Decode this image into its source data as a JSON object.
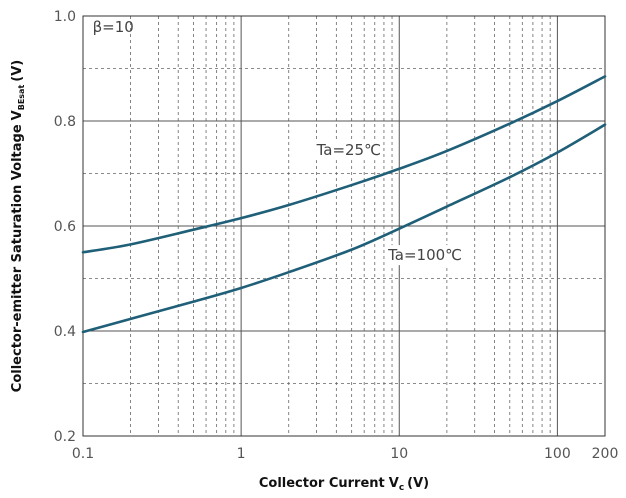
{
  "chart_data": {
    "type": "line",
    "title": "",
    "xlabel": "Collector Current",
    "xlabel_symbol": "V",
    "xlabel_sub": "c",
    "xlabel_unit": "(V)",
    "ylabel": "Collector-emitter Saturation Voltage",
    "ylabel_symbol": "V",
    "ylabel_sub": "BEsat",
    "ylabel_unit": "(V)",
    "x_scale": "log",
    "xlim": [
      0.1,
      200
    ],
    "ylim": [
      0.2,
      1.0
    ],
    "x_ticks": [
      0.1,
      1,
      10,
      100,
      200
    ],
    "x_tick_labels": [
      "0.1",
      "1",
      "10",
      "100",
      "200"
    ],
    "y_ticks": [
      0.2,
      0.4,
      0.6,
      0.8,
      1.0
    ],
    "y_tick_labels": [
      "0.2",
      "0.4",
      "0.6",
      "0.8",
      "1.0"
    ],
    "grid": true,
    "line_color": "#1f5f78",
    "legend": "none",
    "annotations": [
      {
        "text": "β=10",
        "x": 0.115,
        "y": 0.97
      },
      {
        "text": "Ta=25℃",
        "x": 3.0,
        "y": 0.735
      },
      {
        "text": "Ta=100℃",
        "x": 8.5,
        "y": 0.535
      }
    ],
    "series": [
      {
        "name": "Ta=25℃",
        "x": [
          0.1,
          0.2,
          0.5,
          1,
          2,
          5,
          10,
          20,
          50,
          100,
          200
        ],
        "y": [
          0.55,
          0.565,
          0.593,
          0.615,
          0.64,
          0.678,
          0.709,
          0.743,
          0.795,
          0.838,
          0.885
        ]
      },
      {
        "name": "Ta=100℃",
        "x": [
          0.1,
          0.2,
          0.5,
          1,
          2,
          5,
          10,
          20,
          50,
          100,
          200
        ],
        "y": [
          0.398,
          0.423,
          0.456,
          0.482,
          0.512,
          0.555,
          0.595,
          0.637,
          0.693,
          0.74,
          0.793
        ]
      }
    ]
  }
}
